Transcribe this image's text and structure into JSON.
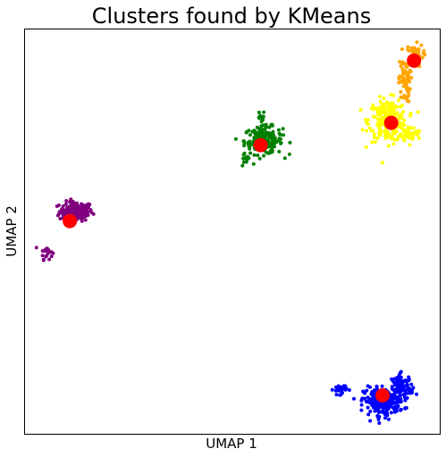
{
  "chart_data": {
    "type": "scatter",
    "title": "Clusters found by KMeans",
    "xlabel": "UMAP 1",
    "ylabel": "UMAP 2",
    "xlim": [
      0,
      100
    ],
    "ylim": [
      0,
      100
    ],
    "grid": false,
    "ticks_visible": false,
    "clusters": [
      {
        "color": "#800080",
        "regions": [
          {
            "x": 12.3,
            "y": 55.0,
            "sx": 2.0,
            "sy": 1.2,
            "n": 170
          },
          {
            "x": 5.2,
            "y": 45.0,
            "sx": 0.7,
            "sy": 0.9,
            "n": 22
          }
        ],
        "center": {
          "x": 10.8,
          "y": 52.6
        }
      },
      {
        "color": "#008000",
        "regions": [
          {
            "x": 57.5,
            "y": 72.5,
            "sx": 2.3,
            "sy": 1.7,
            "n": 200
          },
          {
            "x": 53.0,
            "y": 67.5,
            "sx": 0.6,
            "sy": 0.8,
            "n": 12
          },
          {
            "x": 57.0,
            "y": 78.0,
            "sx": 0.4,
            "sy": 1.0,
            "n": 10
          }
        ],
        "center": {
          "x": 56.8,
          "y": 71.4
        }
      },
      {
        "color": "#ffff00",
        "regions": [
          {
            "x": 87.5,
            "y": 77.5,
            "sx": 2.3,
            "sy": 2.6,
            "n": 240
          },
          {
            "x": 93.0,
            "y": 74.0,
            "sx": 1.3,
            "sy": 0.9,
            "n": 40
          }
        ],
        "center": {
          "x": 88.3,
          "y": 76.9
        }
      },
      {
        "color": "#ffa500",
        "regions": [
          {
            "x": 93.8,
            "y": 93.6,
            "sx": 1.1,
            "sy": 1.4,
            "n": 70
          },
          {
            "x": 91.5,
            "y": 87.0,
            "sx": 0.7,
            "sy": 2.6,
            "n": 60
          }
        ],
        "center": {
          "x": 93.8,
          "y": 92.3
        }
      },
      {
        "color": "#0000ff",
        "regions": [
          {
            "x": 86.5,
            "y": 8.0,
            "sx": 2.4,
            "sy": 1.7,
            "n": 240
          },
          {
            "x": 91.0,
            "y": 11.5,
            "sx": 1.3,
            "sy": 1.6,
            "n": 80
          },
          {
            "x": 76.0,
            "y": 11.0,
            "sx": 0.8,
            "sy": 0.6,
            "n": 30
          }
        ],
        "center": {
          "x": 86.2,
          "y": 9.5
        }
      }
    ],
    "center_color": "#ff0000"
  }
}
